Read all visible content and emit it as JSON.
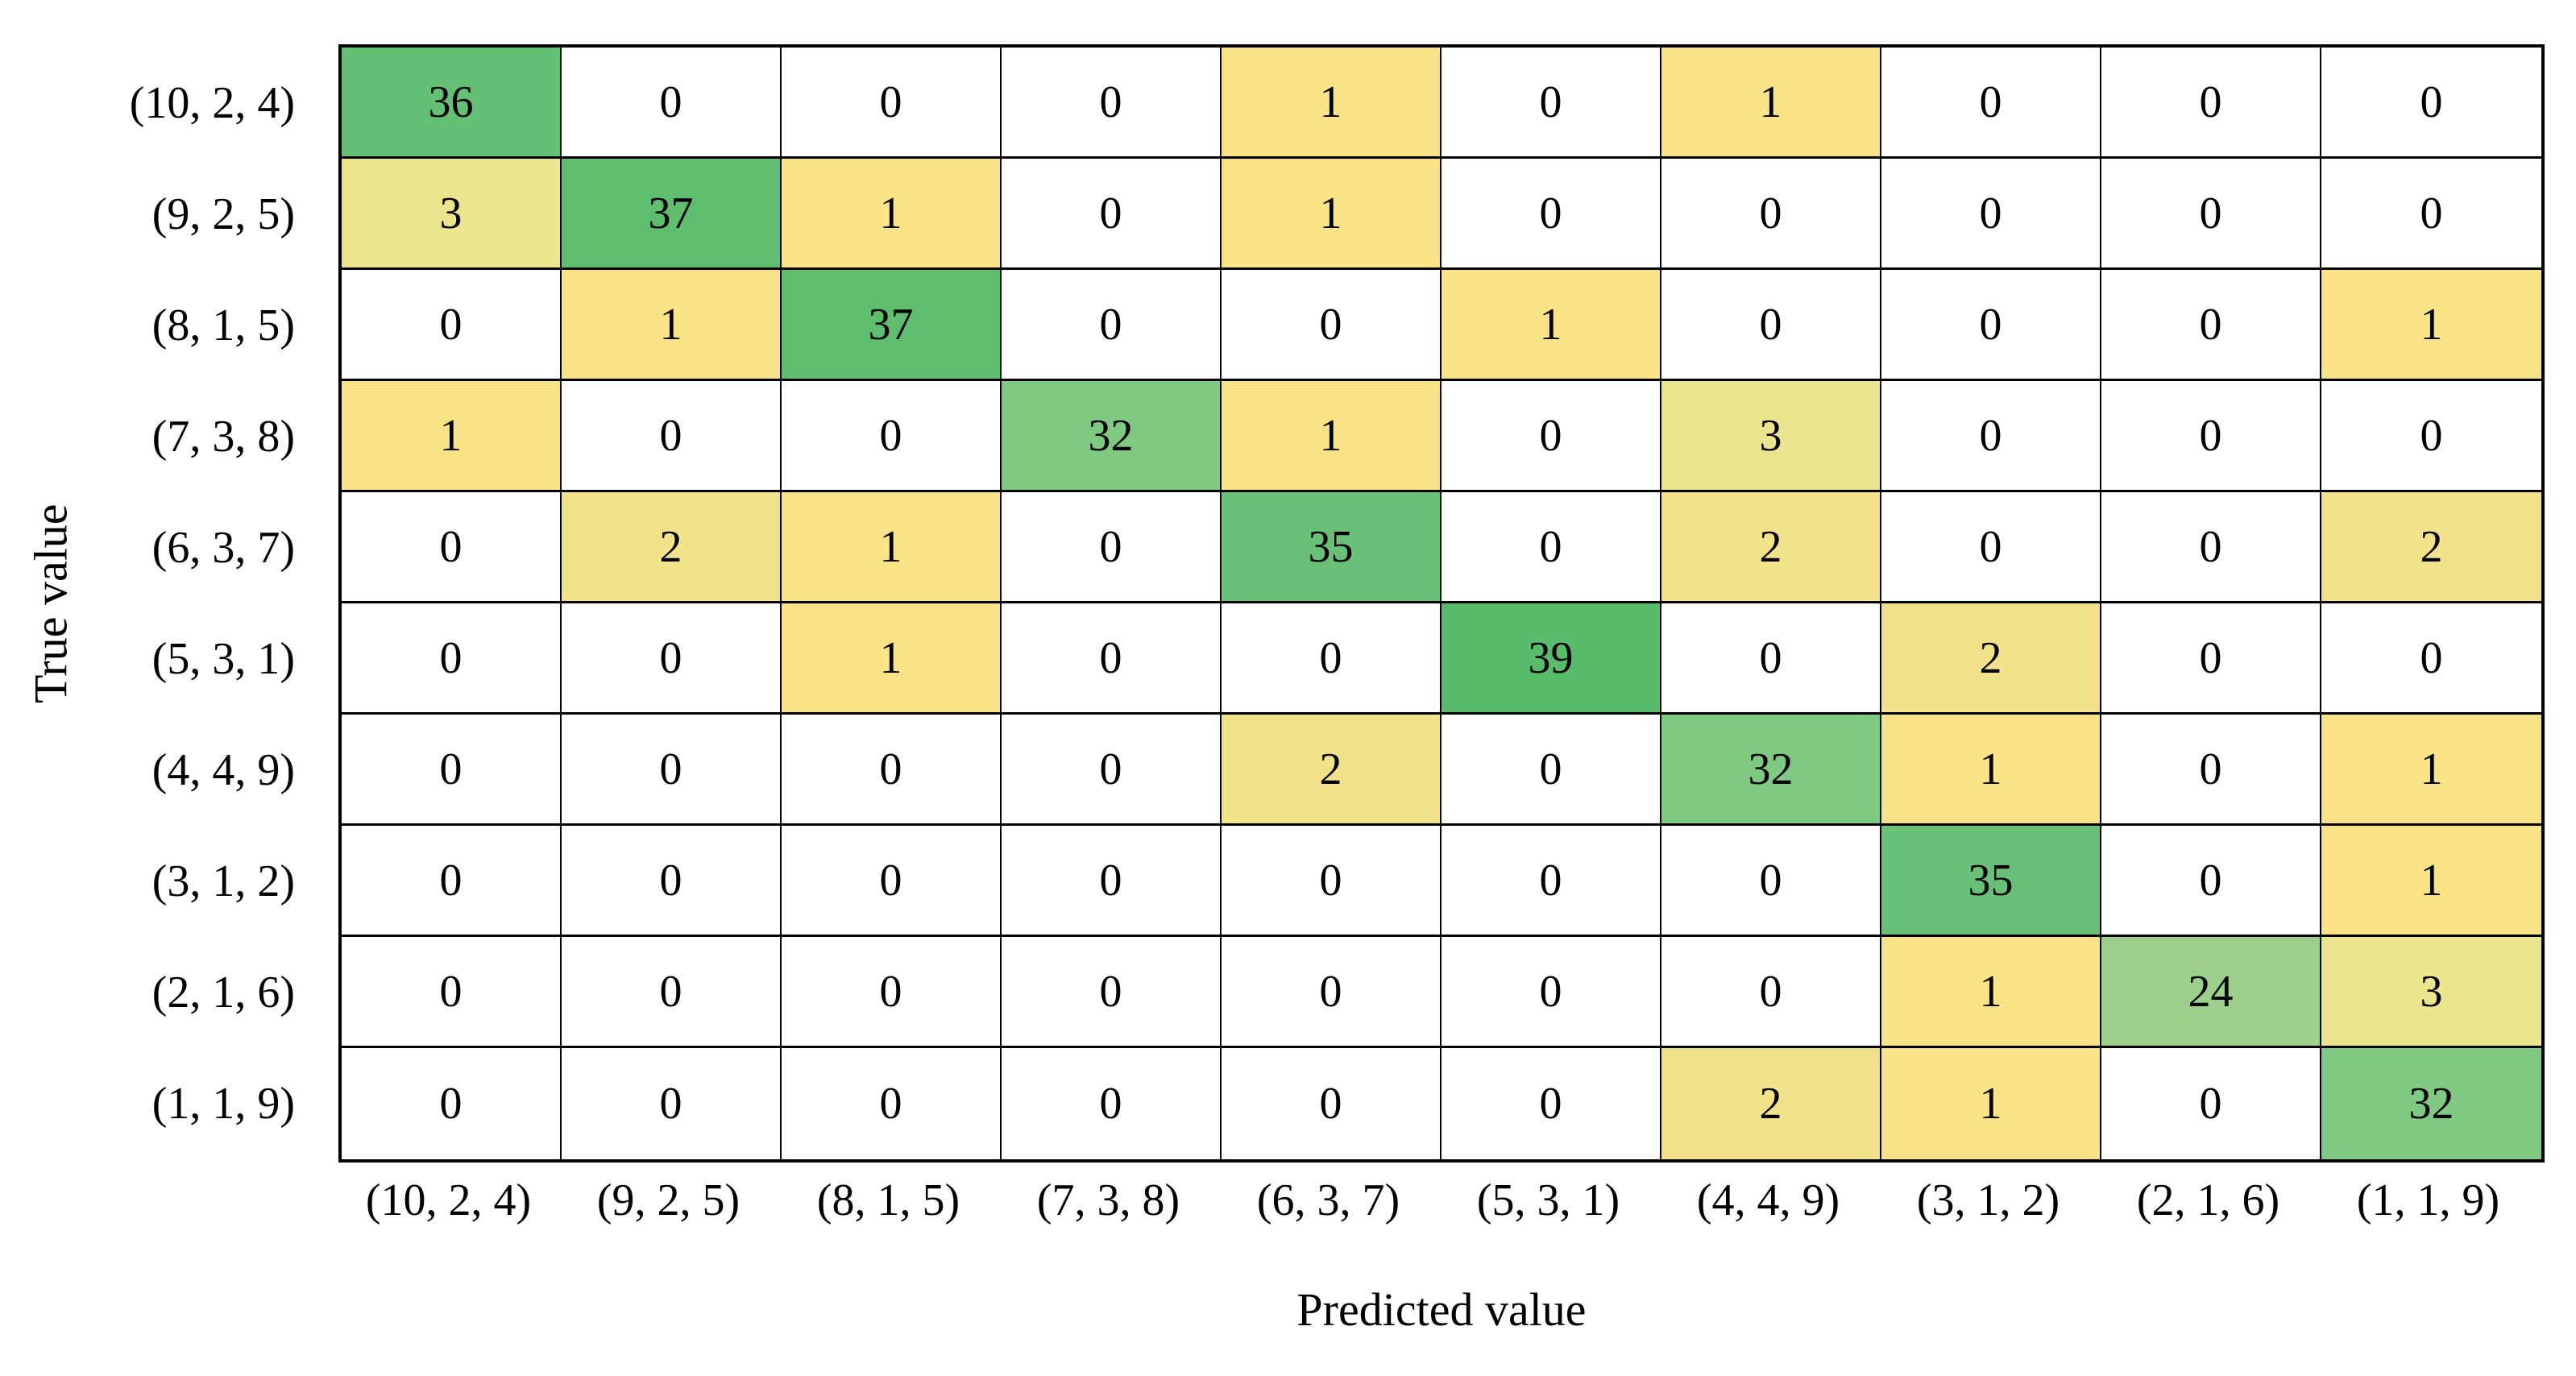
{
  "chart_data": {
    "type": "heatmap",
    "title": "",
    "xlabel": "Predicted value",
    "ylabel": "True value",
    "row_labels": [
      "(10, 2, 4)",
      "(9, 2, 5)",
      "(8, 1, 5)",
      "(7, 3, 8)",
      "(6, 3, 7)",
      "(5, 3, 1)",
      "(4, 4, 9)",
      "(3, 1, 2)",
      "(2, 1, 6)",
      "(1, 1, 9)"
    ],
    "col_labels": [
      "(10, 2, 4)",
      "(9, 2, 5)",
      "(8, 1, 5)",
      "(7, 3, 8)",
      "(6, 3, 7)",
      "(5, 3, 1)",
      "(4, 4, 9)",
      "(3, 1, 2)",
      "(2, 1, 6)",
      "(1, 1, 9)"
    ],
    "values": [
      [
        36,
        0,
        0,
        0,
        1,
        0,
        1,
        0,
        0,
        0
      ],
      [
        3,
        37,
        1,
        0,
        1,
        0,
        0,
        0,
        0,
        0
      ],
      [
        0,
        1,
        37,
        0,
        0,
        1,
        0,
        0,
        0,
        1
      ],
      [
        1,
        0,
        0,
        32,
        1,
        0,
        3,
        0,
        0,
        0
      ],
      [
        0,
        2,
        1,
        0,
        35,
        0,
        2,
        0,
        0,
        2
      ],
      [
        0,
        0,
        1,
        0,
        0,
        39,
        0,
        2,
        0,
        0
      ],
      [
        0,
        0,
        0,
        0,
        2,
        0,
        32,
        1,
        0,
        1
      ],
      [
        0,
        0,
        0,
        0,
        0,
        0,
        0,
        35,
        0,
        1
      ],
      [
        0,
        0,
        0,
        0,
        0,
        0,
        0,
        1,
        24,
        3
      ],
      [
        0,
        0,
        0,
        0,
        0,
        0,
        2,
        1,
        0,
        32
      ]
    ],
    "value_colors": {
      "0": "#ffffff",
      "1": "#f8e386",
      "2": "#f2e38a",
      "3": "#ece58f",
      "24": "#9dd08d",
      "32": "#80c983",
      "35": "#69c178",
      "36": "#64c074",
      "37": "#5ebd6f",
      "39": "#59bc6d"
    },
    "grid_border_color": "#000000",
    "layout": {
      "legend": "none",
      "grid": "full-cell-borders",
      "value_range": [
        0,
        39
      ]
    }
  }
}
